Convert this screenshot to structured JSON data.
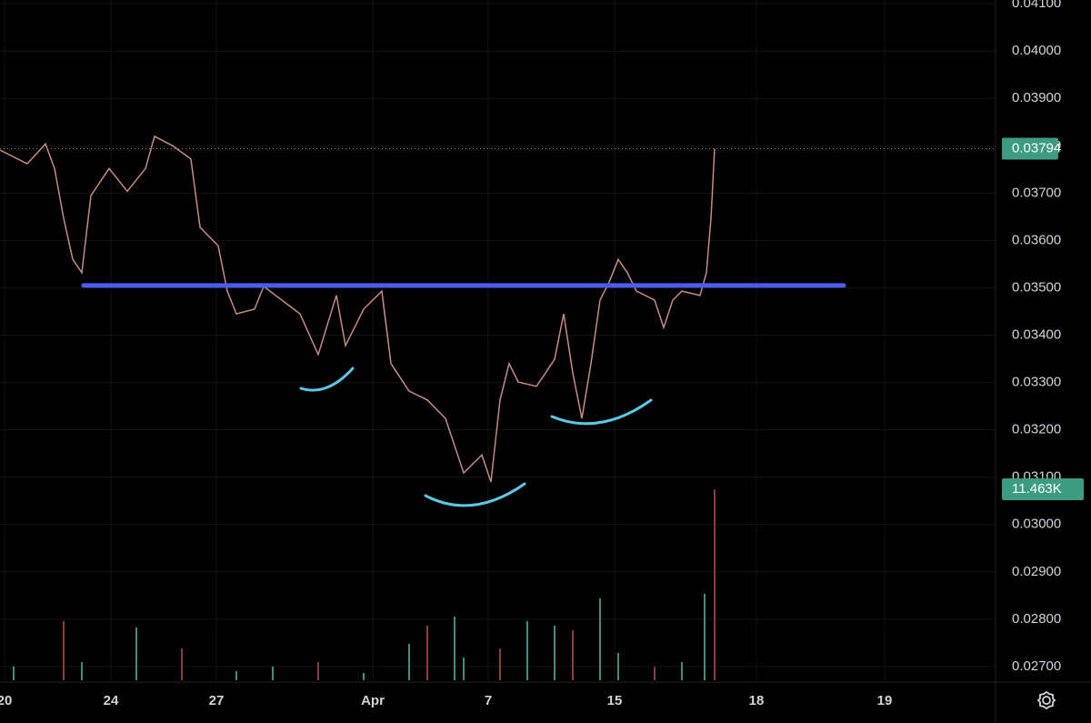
{
  "chart_data": {
    "type": "line",
    "x": [
      0,
      3,
      5,
      6,
      7,
      8,
      9,
      10,
      12,
      14,
      16,
      17,
      19,
      21,
      22,
      24,
      25,
      26,
      28,
      29,
      31,
      33,
      35,
      37,
      38,
      40,
      42,
      43,
      45,
      47,
      49,
      51,
      53,
      54,
      55,
      56,
      57,
      59,
      60,
      61,
      62,
      63,
      64,
      65,
      66,
      67,
      68,
      69,
      70,
      72,
      73,
      74,
      75,
      77,
      77.7,
      78.2,
      78.6
    ],
    "series": [
      {
        "color": "#c98a84",
        "values": [
          0.03791,
          0.03762,
          0.03804,
          0.03752,
          0.03647,
          0.0356,
          0.03532,
          0.03695,
          0.03752,
          0.03704,
          0.03752,
          0.0382,
          0.038,
          0.03772,
          0.03628,
          0.03589,
          0.03493,
          0.03445,
          0.03455,
          0.03503,
          0.03474,
          0.03445,
          0.03359,
          0.03484,
          0.03378,
          0.03455,
          0.03493,
          0.0334,
          0.03282,
          0.03263,
          0.03224,
          0.03109,
          0.03147,
          0.0309,
          0.03263,
          0.0334,
          0.03301,
          0.03292,
          0.0332,
          0.03349,
          0.03445,
          0.0332,
          0.03224,
          0.0334,
          0.03474,
          0.03512,
          0.0356,
          0.03532,
          0.03493,
          0.03474,
          0.03416,
          0.03474,
          0.03493,
          0.03484,
          0.03532,
          0.03647,
          0.03794
        ]
      }
    ],
    "xlim": [
      0,
      109.5
    ],
    "xticks": [
      {
        "value": 0.5,
        "label": "20"
      },
      {
        "value": 12.2,
        "label": "24"
      },
      {
        "value": 23.8,
        "label": "27"
      },
      {
        "value": 41,
        "label": "Apr"
      },
      {
        "value": 53.7,
        "label": "7"
      },
      {
        "value": 67.6,
        "label": "15"
      },
      {
        "value": 83.2,
        "label": "18"
      },
      {
        "value": 97.3,
        "label": "19"
      }
    ],
    "ylim": [
      0.02671,
      0.04108
    ],
    "yticks": [
      {
        "value": 0.027,
        "label": "0.02700"
      },
      {
        "value": 0.028,
        "label": "0.02800"
      },
      {
        "value": 0.029,
        "label": "0.02900"
      },
      {
        "value": 0.03,
        "label": "0.03000"
      },
      {
        "value": 0.031,
        "label": "0.03100"
      },
      {
        "value": 0.032,
        "label": "0.03200"
      },
      {
        "value": 0.033,
        "label": "0.03300"
      },
      {
        "value": 0.034,
        "label": "0.03400"
      },
      {
        "value": 0.035,
        "label": "0.03500"
      },
      {
        "value": 0.036,
        "label": "0.03600"
      },
      {
        "value": 0.037,
        "label": "0.03700"
      },
      {
        "value": 0.038,
        "label": "0.03800"
      },
      {
        "value": 0.039,
        "label": "0.03900"
      },
      {
        "value": 0.04,
        "label": "0.04000"
      },
      {
        "value": 0.041,
        "label": "0.04100"
      }
    ],
    "grid": true,
    "last_price": 0.03794,
    "resistance_line": {
      "value": 0.03505,
      "x": [
        9.2,
        92.8
      ],
      "color": "#4a5cf0"
    },
    "volume": {
      "x": [
        1.5,
        7,
        9,
        15,
        20,
        26,
        30,
        35,
        40,
        45,
        47,
        50,
        51,
        55,
        58,
        61,
        63,
        66,
        68,
        72,
        75,
        77.5,
        78.6
      ],
      "values": [
        819,
        3549,
        1092,
        3167,
        1911,
        546,
        819,
        1092,
        437,
        2184,
        3276,
        3822,
        1365,
        1911,
        3549,
        3276,
        3003,
        4914,
        1638,
        819,
        1092,
        5187,
        11463
      ],
      "last": {
        "value": 11463,
        "label": "11.463K"
      },
      "color": "#3f8f7c"
    }
  }
}
